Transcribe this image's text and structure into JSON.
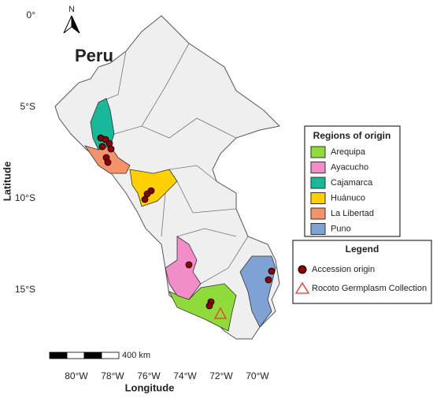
{
  "title": "Peru",
  "north_label": "N",
  "axes": {
    "x_label": "Longitude",
    "y_label": "Latitude",
    "x_ticks": [
      "80°W",
      "78°W",
      "76°W",
      "74°W",
      "72°W",
      "70°W"
    ],
    "y_ticks": [
      "0°",
      "5°S",
      "10°S",
      "15°S"
    ]
  },
  "scale_bar": {
    "label": "400 km"
  },
  "regions_legend": {
    "title": "Regions of origin",
    "items": [
      {
        "name": "Arequipa",
        "color": "#8fdb3a"
      },
      {
        "name": "Ayacucho",
        "color": "#f28dc9"
      },
      {
        "name": "Cajamarca",
        "color": "#18b99a"
      },
      {
        "name": "Huánuco",
        "color": "#ffd000"
      },
      {
        "name": "La Libertad",
        "color": "#f4926a"
      },
      {
        "name": "Puno",
        "color": "#7fa2d4"
      }
    ]
  },
  "legend": {
    "title": "Legend",
    "items": [
      "Accession origin",
      "Rocoto Germplasm Collection"
    ]
  }
}
